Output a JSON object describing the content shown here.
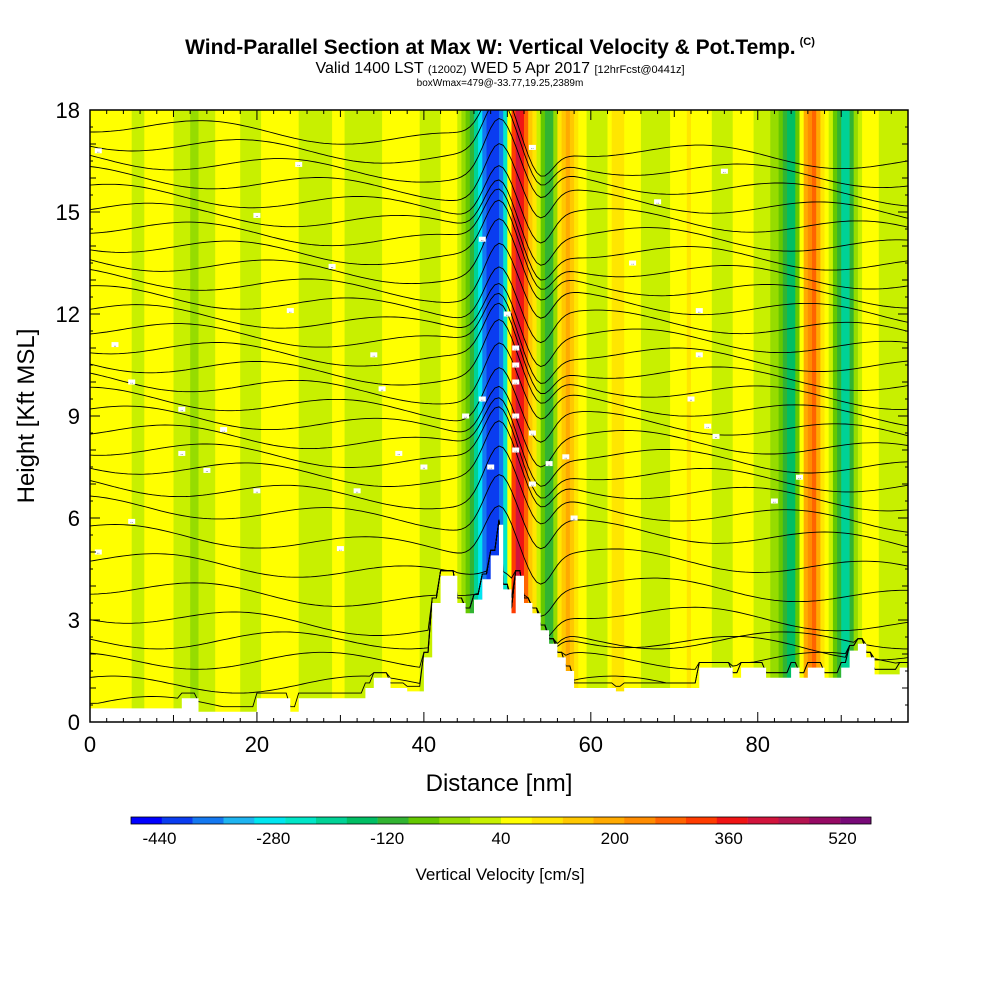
{
  "header": {
    "title": "Wind-Parallel Section at Max W: Vertical Velocity & Pot.Temp.",
    "copyright": "(C)",
    "valid_prefix": "Valid 1400 LST",
    "valid_utc": "(1200Z)",
    "valid_date": "WED 5 Apr 2017",
    "forecast": "[12hrFcst@0441z]",
    "boxwmax": "boxWmax=479@-33.77,19.25,2389m"
  },
  "chart_data": {
    "type": "heatmap",
    "title": "Wind-Parallel Section at Max W: Vertical Velocity & Pot.Temp.",
    "xlabel": "Distance [nm]",
    "ylabel": "Height [Kft MSL]",
    "xlim": [
      0,
      98
    ],
    "ylim": [
      0,
      18
    ],
    "x_ticks": [
      0,
      20,
      40,
      60,
      80
    ],
    "y_ticks": [
      0,
      3,
      6,
      9,
      12,
      15,
      18
    ],
    "colorbar": {
      "label": "Vertical Velocity [cm/s]",
      "tick_values": [
        -440,
        -280,
        -120,
        40,
        200,
        360,
        520
      ],
      "min": -480,
      "max": 560,
      "colors": [
        "#0000ff",
        "#0a3cf0",
        "#1478f0",
        "#1eb4f0",
        "#00e6f0",
        "#00e6c8",
        "#00d296",
        "#00be64",
        "#32b432",
        "#64c800",
        "#96dc00",
        "#c8f000",
        "#ffff00",
        "#ffe600",
        "#ffc800",
        "#ffaa00",
        "#ff8c00",
        "#ff6400",
        "#ff3c00",
        "#f01414",
        "#d2143c",
        "#b41450",
        "#960a64",
        "#780a78"
      ]
    },
    "max_w": {
      "value": 479,
      "units": "cm/s",
      "lat": -33.77,
      "lon": 19.25,
      "height_m": 2389
    },
    "vertical_velocity_features": [
      {
        "x": 45.5,
        "w": -60,
        "note": "green flank"
      },
      {
        "x": 47.5,
        "w": -300,
        "note": "blue/cyan downdraft core"
      },
      {
        "x": 49.5,
        "w": -400,
        "note": "strongest downdraft"
      },
      {
        "x": 51.0,
        "w": 479,
        "note": "red updraft core"
      },
      {
        "x": 53.0,
        "w": 100,
        "note": "yellow updraft"
      },
      {
        "x": 55.0,
        "w": -120,
        "note": "green downdraft"
      },
      {
        "x": 57.0,
        "w": 160,
        "note": "yellow updraft"
      },
      {
        "x": 63.0,
        "w": 120,
        "note": "yellow band"
      },
      {
        "x": 84.0,
        "w": -160,
        "note": "green downdraft"
      },
      {
        "x": 86.5,
        "w": 240,
        "note": "orange band"
      },
      {
        "x": 90.5,
        "w": -200,
        "note": "green downdraft"
      }
    ],
    "terrain": [
      [
        0,
        0.4
      ],
      [
        11,
        0.4
      ],
      [
        11,
        0.7
      ],
      [
        13,
        0.7
      ],
      [
        13,
        0.3
      ],
      [
        20,
        0.3
      ],
      [
        20,
        0.7
      ],
      [
        24,
        0.7
      ],
      [
        24,
        0.3
      ],
      [
        25,
        0.3
      ],
      [
        25,
        0.7
      ],
      [
        33,
        0.7
      ],
      [
        33,
        1.0
      ],
      [
        34,
        1.0
      ],
      [
        34,
        1.3
      ],
      [
        36,
        1.3
      ],
      [
        36,
        1.0
      ],
      [
        38,
        1.0
      ],
      [
        38,
        0.9
      ],
      [
        40,
        0.9
      ],
      [
        40,
        1.9
      ],
      [
        41,
        1.9
      ],
      [
        41,
        3.5
      ],
      [
        42,
        3.5
      ],
      [
        42,
        4.3
      ],
      [
        44,
        4.3
      ],
      [
        44,
        3.5
      ],
      [
        45,
        3.5
      ],
      [
        45,
        3.2
      ],
      [
        46,
        3.2
      ],
      [
        46,
        3.6
      ],
      [
        47,
        3.6
      ],
      [
        47,
        4.2
      ],
      [
        48,
        4.2
      ],
      [
        48,
        4.9
      ],
      [
        49,
        4.9
      ],
      [
        49,
        5.8
      ],
      [
        49.5,
        5.8
      ],
      [
        49.5,
        3.9
      ],
      [
        50.5,
        3.9
      ],
      [
        50.5,
        3.2
      ],
      [
        51,
        3.2
      ],
      [
        51,
        4.3
      ],
      [
        52,
        4.3
      ],
      [
        52,
        3.5
      ],
      [
        53,
        3.5
      ],
      [
        53,
        3.2
      ],
      [
        54,
        3.2
      ],
      [
        54,
        2.7
      ],
      [
        55,
        2.7
      ],
      [
        55,
        2.3
      ],
      [
        56,
        2.3
      ],
      [
        56,
        1.9
      ],
      [
        57,
        1.9
      ],
      [
        57,
        1.5
      ],
      [
        58,
        1.5
      ],
      [
        58,
        1.0
      ],
      [
        63,
        1.0
      ],
      [
        63,
        0.9
      ],
      [
        64,
        0.9
      ],
      [
        64,
        1.0
      ],
      [
        73,
        1.0
      ],
      [
        73,
        1.6
      ],
      [
        77,
        1.6
      ],
      [
        77,
        1.3
      ],
      [
        78,
        1.3
      ],
      [
        78,
        1.6
      ],
      [
        81,
        1.6
      ],
      [
        81,
        1.3
      ],
      [
        84,
        1.3
      ],
      [
        84,
        1.6
      ],
      [
        85,
        1.6
      ],
      [
        85,
        1.3
      ],
      [
        86,
        1.3
      ],
      [
        86,
        1.6
      ],
      [
        88,
        1.6
      ],
      [
        88,
        1.3
      ],
      [
        90,
        1.3
      ],
      [
        90,
        1.6
      ],
      [
        91,
        1.6
      ],
      [
        91,
        2.1
      ],
      [
        92,
        2.1
      ],
      [
        92,
        2.3
      ],
      [
        93,
        2.3
      ],
      [
        93,
        1.9
      ],
      [
        94,
        1.9
      ],
      [
        94,
        1.4
      ],
      [
        97,
        1.4
      ],
      [
        97,
        1.6
      ],
      [
        98,
        1.6
      ]
    ],
    "theta_contours_baseline_kft": [
      0.5,
      1.1,
      1.8,
      2.4,
      3.2,
      4.0,
      4.8,
      5.6,
      6.4,
      7.0,
      7.6,
      8.1,
      8.6,
      9.1,
      9.6,
      10.1,
      10.6,
      11.1,
      11.6,
      12.1,
      12.6,
      13.1,
      13.6,
      14.1,
      14.6,
      15.1,
      15.6,
      16.1,
      16.6,
      17.1,
      17.6
    ],
    "contour_label_text": "..",
    "label_positions": [
      [
        1,
        16.8
      ],
      [
        25,
        16.4
      ],
      [
        20,
        14.9
      ],
      [
        29,
        13.4
      ],
      [
        24,
        12.1
      ],
      [
        3,
        11.1
      ],
      [
        5,
        10.0
      ],
      [
        34,
        10.8
      ],
      [
        35,
        9.8
      ],
      [
        11,
        9.2
      ],
      [
        16,
        8.6
      ],
      [
        11,
        7.9
      ],
      [
        14,
        7.4
      ],
      [
        20,
        6.8
      ],
      [
        5,
        5.9
      ],
      [
        1,
        5.0
      ],
      [
        30,
        5.1
      ],
      [
        32,
        6.8
      ],
      [
        37,
        7.9
      ],
      [
        40,
        7.5
      ],
      [
        45,
        9.0
      ],
      [
        47,
        9.5
      ],
      [
        47,
        14.2
      ],
      [
        50,
        12.0
      ],
      [
        51,
        11.0
      ],
      [
        51,
        10.5
      ],
      [
        51,
        10.0
      ],
      [
        51,
        9.0
      ],
      [
        51,
        8.0
      ],
      [
        48,
        7.5
      ],
      [
        53,
        8.5
      ],
      [
        53,
        7.0
      ],
      [
        55,
        7.6
      ],
      [
        57,
        7.8
      ],
      [
        58,
        6.0
      ],
      [
        53,
        16.9
      ],
      [
        65,
        13.5
      ],
      [
        68,
        15.3
      ],
      [
        73,
        12.1
      ],
      [
        73,
        10.8
      ],
      [
        72,
        9.5
      ],
      [
        74,
        8.7
      ],
      [
        75,
        8.4
      ],
      [
        76,
        16.2
      ],
      [
        82,
        6.5
      ],
      [
        85,
        7.2
      ]
    ]
  }
}
